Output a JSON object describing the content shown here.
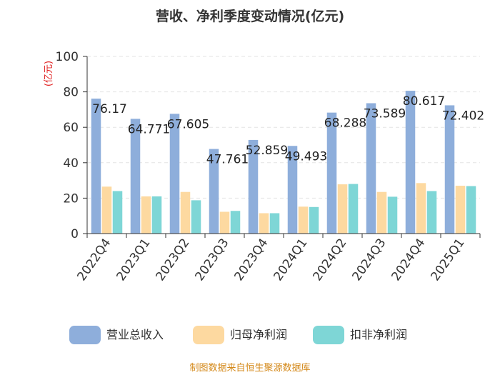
{
  "chart_data": {
    "type": "bar",
    "title": "营收、净利季度变动情况(亿元)",
    "unit_label": "(亿元)",
    "categories": [
      "2022Q4",
      "2023Q1",
      "2023Q2",
      "2023Q3",
      "2023Q4",
      "2024Q1",
      "2024Q2",
      "2024Q3",
      "2024Q4",
      "2025Q1"
    ],
    "series": [
      {
        "name": "营业总收入",
        "color": "#8eaedb",
        "values": [
          76.17,
          64.771,
          67.605,
          47.761,
          52.859,
          49.493,
          68.288,
          73.589,
          80.617,
          72.402
        ]
      },
      {
        "name": "归母净利润",
        "color": "#fdd9a0",
        "values": [
          26.5,
          21.0,
          23.5,
          12.3,
          11.5,
          15.2,
          27.8,
          23.5,
          28.5,
          27.0
        ]
      },
      {
        "name": "扣非净利润",
        "color": "#7ed6d6",
        "values": [
          24.0,
          21.0,
          18.8,
          12.8,
          11.5,
          15.0,
          28.0,
          20.8,
          24.0,
          26.8
        ]
      }
    ],
    "data_labels": [
      "76.17",
      "64.771",
      "67.605",
      "47.761",
      "52.859",
      "49.493",
      "68.288",
      "73.589",
      "80.617",
      "72.402"
    ],
    "ylim": [
      0,
      100
    ],
    "yticks": [
      0,
      20,
      40,
      60,
      80,
      100
    ],
    "xlabel": "",
    "ylabel": "(亿元)",
    "grid": true,
    "legend_position": "bottom"
  },
  "footer": {
    "source": "制图数据来自恒生聚源数据库"
  }
}
